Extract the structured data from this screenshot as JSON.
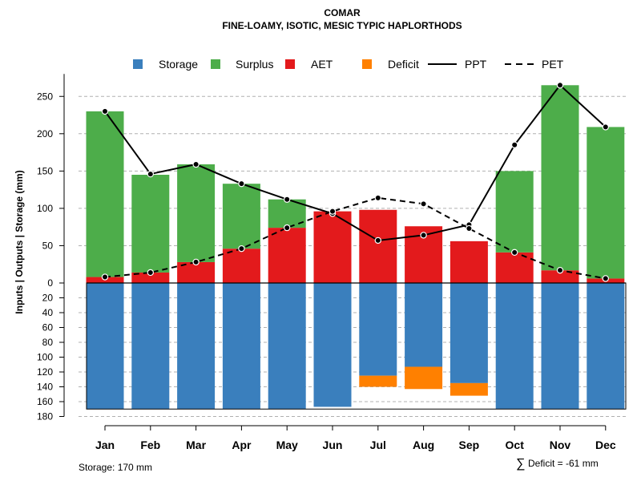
{
  "chart_data": {
    "type": "bar",
    "title": "COMAR",
    "subtitle": "FINE-LOAMY, ISOTIC, MESIC TYPIC HAPLORTHODS",
    "ylabel": "Inputs | Outputs | Storage    (mm)",
    "categories": [
      "Jan",
      "Feb",
      "Mar",
      "Apr",
      "May",
      "Jun",
      "Jul",
      "Aug",
      "Sep",
      "Oct",
      "Nov",
      "Dec"
    ],
    "ylim_upper": [
      0,
      270
    ],
    "ylim_lower": [
      0,
      180
    ],
    "upper_ticks": [
      0,
      50,
      100,
      150,
      200,
      250
    ],
    "lower_ticks": [
      20,
      40,
      60,
      80,
      100,
      120,
      140,
      160,
      180
    ],
    "lower_tick_first": "0",
    "legend": {
      "position": "top",
      "items": [
        {
          "label": "Storage",
          "kind": "box",
          "color": "#3a7fbd"
        },
        {
          "label": "Surplus",
          "kind": "box",
          "color": "#4dad4a"
        },
        {
          "label": "AET",
          "kind": "box",
          "color": "#e31a1c"
        },
        {
          "label": "Deficit",
          "kind": "box",
          "color": "#ff8000"
        },
        {
          "label": "PPT",
          "kind": "line",
          "color": "#000000"
        },
        {
          "label": "PET",
          "kind": "dash",
          "color": "#000000"
        }
      ]
    },
    "series": [
      {
        "name": "AET",
        "color": "#e31a1c",
        "values": [
          8,
          14,
          28,
          46,
          74,
          96,
          98,
          76,
          56,
          41,
          17,
          6
        ]
      },
      {
        "name": "Surplus",
        "color": "#4dad4a",
        "values": [
          222,
          131,
          131,
          87,
          38,
          0,
          0,
          0,
          0,
          109,
          248,
          203
        ]
      },
      {
        "name": "Storage",
        "color": "#3a7fbd",
        "values": [
          170,
          170,
          170,
          170,
          170,
          167,
          125,
          113,
          135,
          170,
          170,
          170
        ]
      },
      {
        "name": "Deficit",
        "color": "#ff8000",
        "values": [
          0,
          0,
          0,
          0,
          0,
          0,
          15,
          30,
          17,
          0,
          0,
          0
        ]
      },
      {
        "name": "PPT",
        "color": "#000000",
        "values": [
          230,
          146,
          159,
          133,
          112,
          93,
          57,
          64,
          78,
          185,
          265,
          209
        ]
      },
      {
        "name": "PET",
        "color": "#000000",
        "values": [
          8,
          14,
          28,
          46,
          74,
          96,
          114,
          106,
          73,
          41,
          17,
          6
        ]
      }
    ],
    "storage_note": "Storage: 170 mm",
    "deficit_symbol": "∑",
    "deficit_note": "Deficit = -61 mm"
  }
}
